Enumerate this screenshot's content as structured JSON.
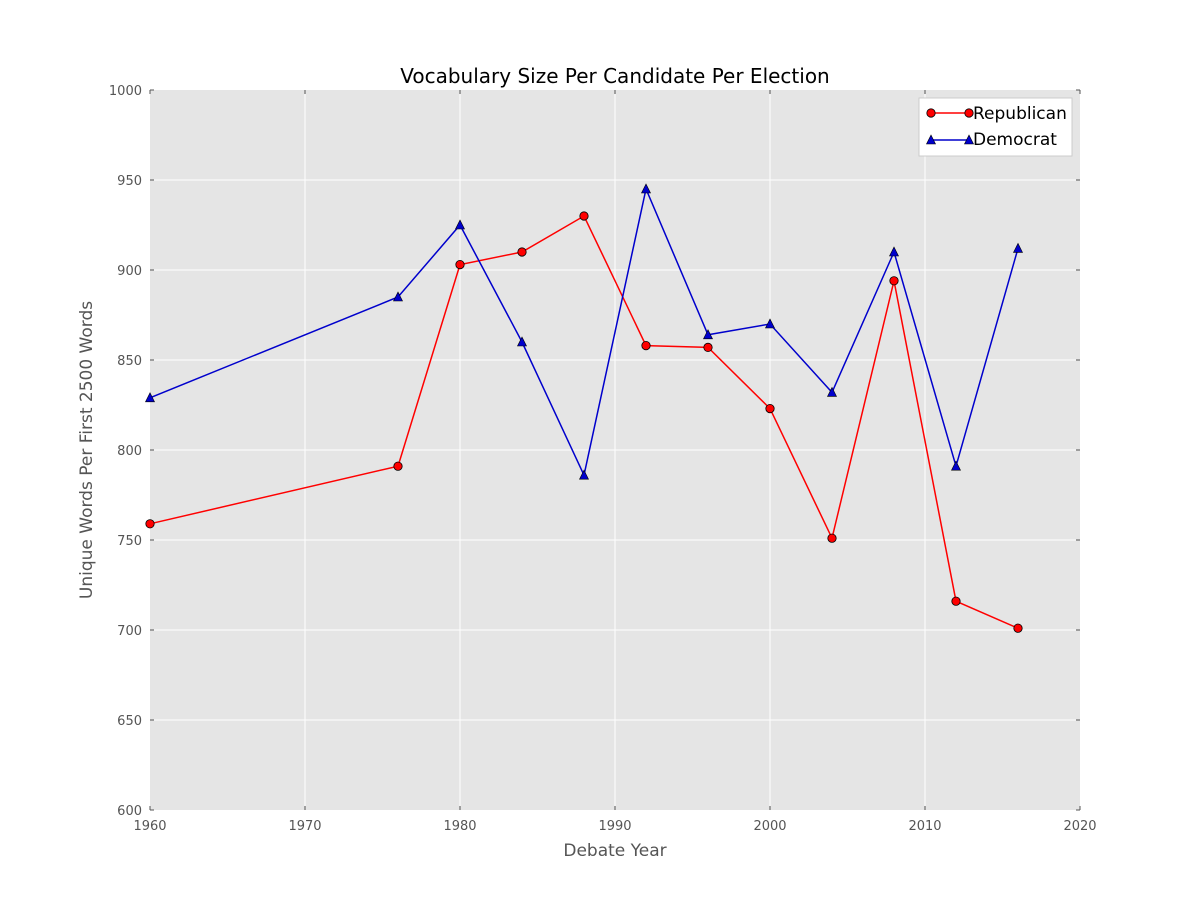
{
  "chart_data": {
    "type": "line",
    "title": "Vocabulary Size Per Candidate Per Election",
    "xlabel": "Debate Year",
    "ylabel": "Unique Words Per First 2500 Words",
    "xlim": [
      1960,
      2020
    ],
    "ylim": [
      600,
      1000
    ],
    "xticks": [
      "1960",
      "1970",
      "1980",
      "1990",
      "2000",
      "2010",
      "2020"
    ],
    "yticks": [
      "600",
      "650",
      "700",
      "750",
      "800",
      "850",
      "900",
      "950",
      "1000"
    ],
    "grid": true,
    "legend_position": "top-right",
    "x": [
      1960,
      1976,
      1980,
      1984,
      1988,
      1992,
      1996,
      2000,
      2004,
      2008,
      2012,
      2016
    ],
    "series": [
      {
        "name": "Republican",
        "color": "#ff0000",
        "marker": "circle",
        "values": [
          759,
          791,
          903,
          910,
          930,
          858,
          857,
          823,
          751,
          894,
          716,
          701
        ]
      },
      {
        "name": "Democrat",
        "color": "#0000cc",
        "marker": "triangle",
        "values": [
          829,
          885,
          925,
          860,
          786,
          945,
          864,
          870,
          832,
          910,
          791,
          912
        ]
      }
    ]
  }
}
